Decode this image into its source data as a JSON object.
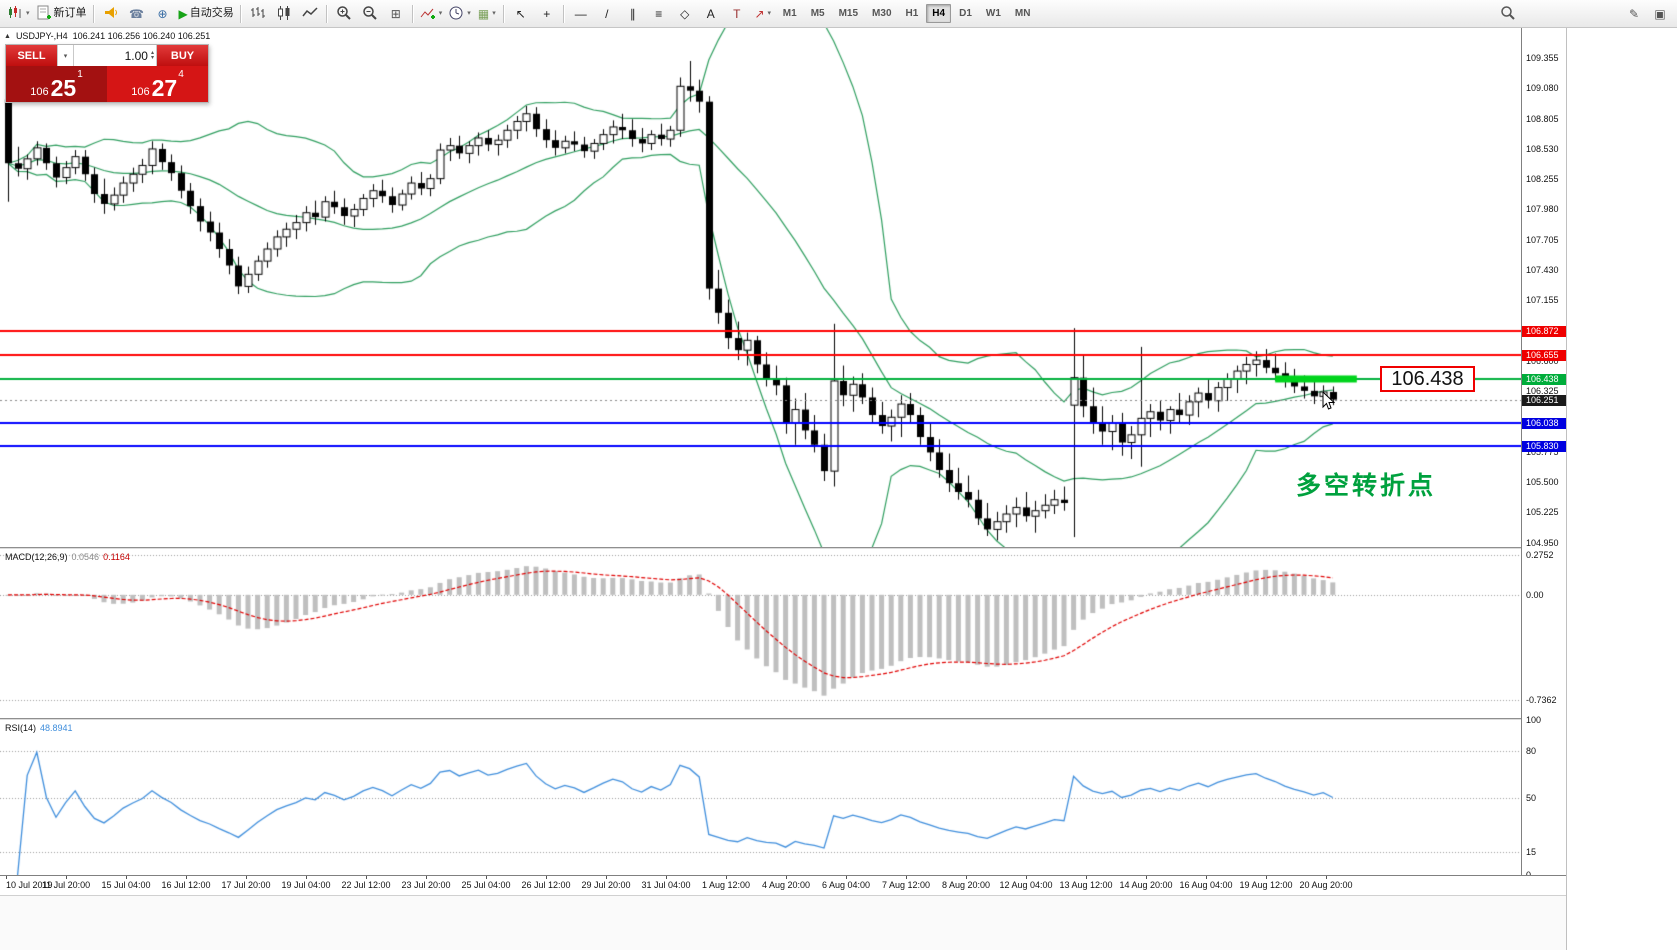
{
  "colors": {
    "bull": "#ffffff",
    "bear": "#000000",
    "outline": "#000000",
    "bands": "#2f9e5f",
    "level_red": "#ff0000",
    "level_green": "#00b03c",
    "level_blue": "#0000ff",
    "highlight": "#00d41c",
    "current_dash": "#888888",
    "macd_hist": "#bfbfbf",
    "macd_signal": "#e00000",
    "rsi_line": "#3f8edc",
    "grid_dot": "#9a9a9a"
  },
  "toolbar": {
    "items": [
      {
        "name": "new-chart-icon",
        "svg": "candles",
        "dd": true
      },
      {
        "name": "new-order-button",
        "label": "新订单",
        "svg": "neworder"
      },
      {
        "sep": true
      },
      {
        "name": "alerts-horn-icon",
        "svg": "horn"
      },
      {
        "name": "support-icon",
        "glyph": "☎",
        "color": "#6a7f9d"
      },
      {
        "name": "community-icon",
        "glyph": "⊕",
        "color": "#3a6ea5"
      },
      {
        "name": "autotrading-button",
        "label": "自动交易",
        "glyph": "▶",
        "color": "#17a317"
      },
      {
        "sep": true
      },
      {
        "name": "bar-chart-icon",
        "svg": "bars"
      },
      {
        "name": "candlestick-chart-icon",
        "svg": "candle"
      },
      {
        "name": "line-chart-icon",
        "svg": "line"
      },
      {
        "sep": true
      },
      {
        "name": "zoom-in-icon",
        "svg": "zoomin"
      },
      {
        "name": "zoom-out-icon",
        "svg": "zoomout"
      },
      {
        "name": "tile-windows-icon",
        "glyph": "⊞",
        "color": "#555555"
      },
      {
        "sep": true
      },
      {
        "name": "indicators-icon",
        "svg": "indicator",
        "dd": true
      },
      {
        "name": "periods-icon",
        "svg": "clock",
        "dd": true
      },
      {
        "name": "templates-icon",
        "glyph": "▦",
        "color": "#7aa05a",
        "dd": true
      },
      {
        "sep": true
      },
      {
        "name": "cursor-icon",
        "glyph": "↖",
        "color": "#222222"
      },
      {
        "name": "crosshair-icon",
        "glyph": "+",
        "color": "#222222"
      },
      {
        "sep": true
      },
      {
        "name": "horizontal-line-icon",
        "glyph": "—",
        "color": "#222222"
      },
      {
        "name": "trendline-icon",
        "glyph": "/",
        "color": "#222222"
      },
      {
        "name": "channel-icon",
        "glyph": "∥",
        "color": "#222222"
      },
      {
        "name": "fibonacci-icon",
        "glyph": "≡",
        "color": "#222222"
      },
      {
        "name": "shapes-icon",
        "glyph": "◇",
        "color": "#222222"
      },
      {
        "name": "text-icon",
        "glyph": "A",
        "color": "#222222"
      },
      {
        "name": "label-icon",
        "glyph": "T",
        "color": "#9a3030"
      },
      {
        "name": "arrows-icon",
        "glyph": "↗",
        "color": "#c03030",
        "dd": true
      },
      {
        "tf": true
      },
      {
        "spacer": true
      },
      {
        "name": "search-icon",
        "svg": "search"
      },
      {
        "gap": true
      },
      {
        "name": "edit-icon",
        "glyph": "✎",
        "color": "#555555"
      },
      {
        "name": "window-icon",
        "glyph": "▣",
        "color": "#555555"
      }
    ],
    "timeframes": [
      "M1",
      "M5",
      "M15",
      "M30",
      "H1",
      "H4",
      "D1",
      "W1",
      "MN"
    ],
    "active_timeframe": "H4"
  },
  "symbol_header": {
    "symbol": "USDJPY-,H4",
    "ohlc": "106.241 106.256 106.240 106.251"
  },
  "trade_panel": {
    "sell_label": "SELL",
    "buy_label": "BUY",
    "volume": "1.00",
    "sell_price": {
      "prefix": "106",
      "big": "25",
      "sup": "1"
    },
    "buy_price": {
      "prefix": "106",
      "big": "27",
      "sup": "4"
    }
  },
  "price_scale": {
    "ticks": [
      "109.355",
      "109.080",
      "108.805",
      "108.530",
      "108.255",
      "107.980",
      "107.705",
      "107.430",
      "107.155",
      "106.600",
      "106.325",
      "105.775",
      "105.500",
      "105.225",
      "104.950"
    ],
    "level_labels": [
      {
        "text": "106.872",
        "type": "red"
      },
      {
        "text": "106.655",
        "type": "red"
      },
      {
        "text": "106.438",
        "type": "green"
      },
      {
        "text": "106.251",
        "type": "current"
      },
      {
        "text": "106.038",
        "type": "blue"
      },
      {
        "text": "105.830",
        "type": "blue"
      }
    ]
  },
  "annotations": {
    "price_callout": "106.438",
    "pivot_text": "多空转折点"
  },
  "macd_panel": {
    "name": "MACD(12,26,9)",
    "value_main": "0.0546",
    "value_signal": "0.1164",
    "scale": [
      "0.2752",
      "0.00",
      "-0.7362"
    ]
  },
  "rsi_panel": {
    "name": "RSI(14)",
    "value": "48.8941",
    "scale": [
      "100",
      "80",
      "50",
      "15",
      "0"
    ],
    "levels": [
      80,
      50,
      15
    ]
  },
  "time_axis": [
    "10 Jul 2019",
    "11 Jul 20:00",
    "15 Jul 04:00",
    "16 Jul 12:00",
    "17 Jul 20:00",
    "19 Jul 04:00",
    "22 Jul 12:00",
    "23 Jul 20:00",
    "25 Jul 04:00",
    "26 Jul 12:00",
    "29 Jul 20:00",
    "31 Jul 04:00",
    "1 Aug 12:00",
    "4 Aug 20:00",
    "6 Aug 04:00",
    "7 Aug 12:00",
    "8 Aug 20:00",
    "12 Aug 04:00",
    "13 Aug 12:00",
    "14 Aug 20:00",
    "16 Aug 04:00",
    "19 Aug 12:00",
    "20 Aug 20:00"
  ],
  "chart_data": {
    "type": "candlestick",
    "symbol": "USDJPY",
    "timeframe": "H4",
    "title": "USDJPY-,H4 with Bollinger Bands, MACD(12,26,9), RSI(14)",
    "price_range": [
      104.91,
      109.63
    ],
    "levels": {
      "red": [
        106.872,
        106.655
      ],
      "green": 106.438,
      "blue": [
        106.038,
        105.83
      ],
      "current": 106.251
    },
    "highlight_segment": {
      "price": 106.438,
      "from_candle": 132,
      "to_candle": 140.5
    },
    "bollinger_period": 20,
    "bollinger_dev": 2,
    "macd_params": [
      12,
      26,
      9
    ],
    "macd_range": [
      0.32,
      -0.86
    ],
    "rsi_period": 14,
    "candles": [
      [
        108.98,
        109.05,
        108.05,
        108.4
      ],
      [
        108.4,
        108.55,
        108.28,
        108.35
      ],
      [
        108.35,
        108.48,
        108.25,
        108.44
      ],
      [
        108.44,
        108.6,
        108.38,
        108.54
      ],
      [
        108.54,
        108.58,
        108.34,
        108.4
      ],
      [
        108.4,
        108.46,
        108.18,
        108.27
      ],
      [
        108.27,
        108.42,
        108.21,
        108.36
      ],
      [
        108.36,
        108.52,
        108.3,
        108.46
      ],
      [
        108.46,
        108.52,
        108.24,
        108.3
      ],
      [
        108.3,
        108.36,
        108.04,
        108.12
      ],
      [
        108.12,
        108.26,
        107.94,
        108.03
      ],
      [
        108.03,
        108.18,
        107.97,
        108.11
      ],
      [
        108.11,
        108.28,
        108.04,
        108.22
      ],
      [
        108.22,
        108.36,
        108.14,
        108.3
      ],
      [
        108.3,
        108.44,
        108.22,
        108.38
      ],
      [
        108.38,
        108.6,
        108.3,
        108.53
      ],
      [
        108.53,
        108.58,
        108.34,
        108.41
      ],
      [
        108.41,
        108.48,
        108.24,
        108.31
      ],
      [
        108.31,
        108.38,
        108.08,
        108.15
      ],
      [
        108.15,
        108.22,
        107.94,
        108.01
      ],
      [
        108.01,
        108.08,
        107.78,
        107.87
      ],
      [
        107.87,
        107.96,
        107.69,
        107.77
      ],
      [
        107.77,
        107.86,
        107.54,
        107.62
      ],
      [
        107.62,
        107.71,
        107.39,
        107.47
      ],
      [
        107.47,
        107.55,
        107.21,
        107.28
      ],
      [
        107.28,
        107.46,
        107.22,
        107.39
      ],
      [
        107.39,
        107.56,
        107.33,
        107.51
      ],
      [
        107.51,
        107.68,
        107.45,
        107.62
      ],
      [
        107.62,
        107.79,
        107.55,
        107.73
      ],
      [
        107.73,
        107.86,
        107.64,
        107.8
      ],
      [
        107.8,
        107.93,
        107.71,
        107.86
      ],
      [
        107.86,
        108.01,
        107.78,
        107.95
      ],
      [
        107.95,
        108.06,
        107.84,
        107.91
      ],
      [
        107.91,
        108.1,
        107.87,
        108.05
      ],
      [
        108.05,
        108.15,
        107.94,
        108.0
      ],
      [
        108.0,
        108.08,
        107.84,
        107.92
      ],
      [
        107.92,
        108.03,
        107.82,
        107.98
      ],
      [
        107.98,
        108.12,
        107.92,
        108.08
      ],
      [
        108.08,
        108.21,
        108.0,
        108.15
      ],
      [
        108.15,
        108.25,
        108.04,
        108.1
      ],
      [
        108.1,
        108.18,
        107.95,
        108.02
      ],
      [
        108.02,
        108.16,
        107.97,
        108.12
      ],
      [
        108.12,
        108.28,
        108.07,
        108.22
      ],
      [
        108.22,
        108.32,
        108.11,
        108.17
      ],
      [
        108.17,
        108.3,
        108.1,
        108.26
      ],
      [
        108.26,
        108.58,
        108.21,
        108.52
      ],
      [
        108.52,
        108.63,
        108.42,
        108.56
      ],
      [
        108.56,
        108.65,
        108.44,
        108.49
      ],
      [
        108.49,
        108.6,
        108.4,
        108.56
      ],
      [
        108.56,
        108.68,
        108.47,
        108.63
      ],
      [
        108.63,
        108.7,
        108.51,
        108.57
      ],
      [
        108.57,
        108.66,
        108.47,
        108.61
      ],
      [
        108.61,
        108.75,
        108.54,
        108.7
      ],
      [
        108.7,
        108.83,
        108.62,
        108.78
      ],
      [
        108.78,
        108.92,
        108.69,
        108.85
      ],
      [
        108.85,
        108.91,
        108.64,
        108.71
      ],
      [
        108.71,
        108.8,
        108.54,
        108.61
      ],
      [
        108.61,
        108.7,
        108.47,
        108.54
      ],
      [
        108.54,
        108.65,
        108.49,
        108.6
      ],
      [
        108.6,
        108.69,
        108.51,
        108.57
      ],
      [
        108.57,
        108.64,
        108.45,
        108.51
      ],
      [
        108.51,
        108.62,
        108.44,
        108.58
      ],
      [
        108.58,
        108.71,
        108.52,
        108.66
      ],
      [
        108.66,
        108.79,
        108.58,
        108.73
      ],
      [
        108.73,
        108.85,
        108.62,
        108.7
      ],
      [
        108.7,
        108.8,
        108.55,
        108.62
      ],
      [
        108.62,
        108.72,
        108.5,
        108.58
      ],
      [
        108.58,
        108.7,
        108.52,
        108.66
      ],
      [
        108.66,
        108.76,
        108.56,
        108.62
      ],
      [
        108.62,
        108.74,
        108.55,
        108.7
      ],
      [
        108.7,
        109.18,
        108.64,
        109.1
      ],
      [
        109.1,
        109.33,
        108.96,
        109.06
      ],
      [
        109.06,
        109.16,
        108.86,
        108.96
      ],
      [
        108.96,
        109.01,
        107.16,
        107.26
      ],
      [
        107.26,
        107.43,
        106.94,
        107.04
      ],
      [
        107.04,
        107.16,
        106.71,
        106.81
      ],
      [
        106.81,
        106.96,
        106.61,
        106.7
      ],
      [
        106.7,
        106.86,
        106.56,
        106.79
      ],
      [
        106.79,
        106.83,
        106.49,
        106.57
      ],
      [
        106.57,
        106.68,
        106.37,
        106.44
      ],
      [
        106.44,
        106.56,
        106.29,
        106.38
      ],
      [
        106.38,
        106.45,
        105.94,
        106.04
      ],
      [
        106.04,
        106.26,
        105.84,
        106.16
      ],
      [
        106.16,
        106.31,
        105.89,
        105.97
      ],
      [
        105.97,
        106.11,
        105.77,
        105.84
      ],
      [
        105.84,
        105.94,
        105.51,
        105.6
      ],
      [
        105.6,
        106.94,
        105.46,
        106.42
      ],
      [
        106.42,
        106.56,
        106.19,
        106.29
      ],
      [
        106.29,
        106.46,
        106.14,
        106.39
      ],
      [
        106.39,
        106.49,
        106.21,
        106.27
      ],
      [
        106.27,
        106.36,
        106.04,
        106.11
      ],
      [
        106.11,
        106.23,
        105.94,
        106.01
      ],
      [
        106.01,
        106.16,
        105.87,
        106.09
      ],
      [
        106.09,
        106.29,
        105.91,
        106.21
      ],
      [
        106.21,
        106.31,
        106.04,
        106.11
      ],
      [
        106.11,
        106.18,
        105.84,
        105.91
      ],
      [
        105.91,
        106.03,
        105.69,
        105.77
      ],
      [
        105.77,
        105.89,
        105.54,
        105.61
      ],
      [
        105.61,
        105.76,
        105.41,
        105.49
      ],
      [
        105.49,
        105.63,
        105.34,
        105.41
      ],
      [
        105.41,
        105.56,
        105.27,
        105.34
      ],
      [
        105.34,
        105.43,
        105.11,
        105.17
      ],
      [
        105.17,
        105.31,
        105.01,
        105.07
      ],
      [
        105.07,
        105.23,
        104.97,
        105.14
      ],
      [
        105.14,
        105.29,
        105.04,
        105.21
      ],
      [
        105.21,
        105.36,
        105.09,
        105.27
      ],
      [
        105.27,
        105.41,
        105.14,
        105.19
      ],
      [
        105.19,
        105.33,
        105.04,
        105.24
      ],
      [
        105.24,
        105.39,
        105.17,
        105.29
      ],
      [
        105.29,
        105.43,
        105.21,
        105.34
      ],
      [
        105.34,
        105.46,
        105.24,
        105.31
      ],
      [
        106.2,
        106.9,
        105.0,
        106.45
      ],
      [
        106.45,
        106.66,
        106.09,
        106.19
      ],
      [
        106.19,
        106.36,
        105.94,
        106.04
      ],
      [
        106.04,
        106.19,
        105.84,
        105.96
      ],
      [
        105.96,
        106.11,
        105.79,
        106.04
      ],
      [
        106.04,
        106.13,
        105.74,
        105.86
      ],
      [
        105.86,
        106.01,
        105.71,
        105.93
      ],
      [
        105.93,
        106.73,
        105.64,
        106.08
      ],
      [
        106.08,
        106.21,
        105.91,
        106.14
      ],
      [
        106.14,
        106.24,
        105.97,
        106.06
      ],
      [
        106.06,
        106.19,
        105.94,
        106.16
      ],
      [
        106.16,
        106.31,
        106.04,
        106.11
      ],
      [
        106.11,
        106.29,
        106.02,
        106.23
      ],
      [
        106.23,
        106.36,
        106.09,
        106.31
      ],
      [
        106.31,
        106.43,
        106.17,
        106.24
      ],
      [
        106.24,
        106.41,
        106.14,
        106.36
      ],
      [
        106.36,
        106.49,
        106.24,
        106.44
      ],
      [
        106.44,
        106.56,
        106.31,
        106.51
      ],
      [
        106.51,
        106.64,
        106.39,
        106.57
      ],
      [
        106.57,
        106.69,
        106.46,
        106.61
      ],
      [
        106.61,
        106.71,
        106.49,
        106.54
      ],
      [
        106.54,
        106.67,
        106.42,
        106.49
      ],
      [
        106.49,
        106.59,
        106.36,
        106.42
      ],
      [
        106.42,
        106.53,
        106.31,
        106.37
      ],
      [
        106.37,
        106.47,
        106.26,
        106.33
      ],
      [
        106.33,
        106.42,
        106.21,
        106.28
      ],
      [
        106.28,
        106.38,
        106.19,
        106.32
      ],
      [
        106.32,
        106.37,
        106.2,
        106.25
      ]
    ]
  }
}
